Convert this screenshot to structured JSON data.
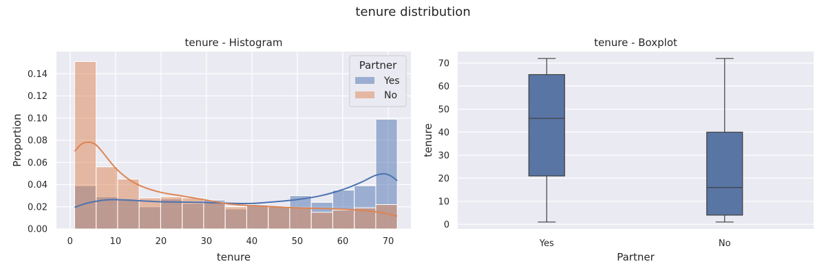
{
  "suptitle": "tenure distribution",
  "chart_data": [
    {
      "type": "histogram",
      "title": "tenure - Histogram",
      "xlabel": "tenure",
      "ylabel": "Proportion",
      "xlim": [
        -3,
        75
      ],
      "ylim": [
        0,
        0.16
      ],
      "xticks": [
        0,
        10,
        20,
        30,
        40,
        50,
        60,
        70
      ],
      "yticks": [
        0.0,
        0.02,
        0.04,
        0.06,
        0.08,
        0.1,
        0.12,
        0.14
      ],
      "ytick_labels": [
        "0.00",
        "0.02",
        "0.04",
        "0.06",
        "0.08",
        "0.10",
        "0.12",
        "0.14"
      ],
      "grid": true,
      "legend": {
        "title": "Partner",
        "location": "top-right"
      },
      "bin_edges": [
        1,
        5.733,
        10.467,
        15.2,
        19.933,
        24.667,
        29.4,
        34.133,
        38.867,
        43.6,
        48.333,
        53.067,
        57.8,
        62.533,
        67.267,
        72
      ],
      "series": [
        {
          "name": "Yes",
          "color": "#4c72b0",
          "values": [
            0.039,
            0.029,
            0.026,
            0.02,
            0.027,
            0.023,
            0.026,
            0.018,
            0.022,
            0.02,
            0.03,
            0.024,
            0.035,
            0.039,
            0.099
          ],
          "kde": {
            "x": [
              1,
              4,
              8,
              12,
              16,
              20,
              25,
              30,
              35,
              40,
              45,
              50,
              55,
              60,
              64,
              67,
              69,
              70.5,
              72
            ],
            "y": [
              0.0195,
              0.0235,
              0.0262,
              0.0262,
              0.0253,
              0.0245,
              0.0242,
              0.0239,
              0.0232,
              0.023,
              0.0245,
              0.0265,
              0.0298,
              0.0355,
              0.042,
              0.048,
              0.0498,
              0.048,
              0.0435
            ]
          }
        },
        {
          "name": "No",
          "color": "#dd8452",
          "values": [
            0.151,
            0.056,
            0.045,
            0.028,
            0.029,
            0.028,
            0.024,
            0.02,
            0.021,
            0.02,
            0.019,
            0.015,
            0.017,
            0.019,
            0.022
          ],
          "kde": {
            "x": [
              1,
              2.5,
              4,
              5.5,
              7,
              10,
              13,
              16,
              20,
              25,
              30,
              35,
              40,
              45,
              50,
              55,
              60,
              65,
              68,
              70,
              72
            ],
            "y": [
              0.07,
              0.0765,
              0.0782,
              0.0765,
              0.07,
              0.055,
              0.0445,
              0.038,
              0.033,
              0.0295,
              0.026,
              0.0225,
              0.021,
              0.02,
              0.019,
              0.0185,
              0.0178,
              0.0165,
              0.015,
              0.0135,
              0.0115
            ]
          }
        }
      ]
    },
    {
      "type": "boxplot",
      "title": "tenure - Boxplot",
      "xlabel": "Partner",
      "ylabel": "tenure",
      "ylim": [
        -2,
        75
      ],
      "yticks": [
        0,
        10,
        20,
        30,
        40,
        50,
        60,
        70
      ],
      "grid": true,
      "color": "#5975a4",
      "categories": [
        "Yes",
        "No"
      ],
      "boxes": [
        {
          "category": "Yes",
          "min": 1,
          "q1": 21,
          "median": 46,
          "q3": 65,
          "max": 72
        },
        {
          "category": "No",
          "min": 1,
          "q1": 4,
          "median": 16,
          "q3": 40,
          "max": 72
        }
      ]
    }
  ]
}
